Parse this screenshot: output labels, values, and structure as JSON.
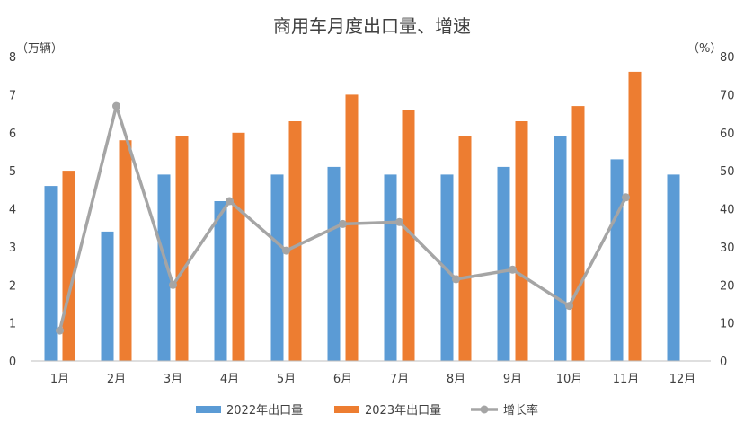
{
  "colors": {
    "series_2022": "#5B9BD5",
    "series_2023": "#ED7D31",
    "growth": "#A5A5A5",
    "axis": "#BFBFBF",
    "text": "#404040"
  },
  "chart_data": {
    "type": "bar",
    "title": "商用车月度出口量、增速",
    "y_left_unit": "（万辆）",
    "y_right_unit": "（%）",
    "categories": [
      "1月",
      "2月",
      "3月",
      "4月",
      "5月",
      "6月",
      "7月",
      "8月",
      "9月",
      "10月",
      "11月",
      "12月"
    ],
    "ylim_left": [
      0,
      8
    ],
    "ylim_right": [
      0,
      80
    ],
    "yticks_left": [
      "0",
      "1",
      "2",
      "3",
      "4",
      "5",
      "6",
      "7",
      "8"
    ],
    "yticks_right": [
      "0",
      "10",
      "20",
      "30",
      "40",
      "50",
      "60",
      "70",
      "80"
    ],
    "series": [
      {
        "name": "2022年出口量",
        "type": "bar",
        "axis": "left",
        "values": [
          4.6,
          3.4,
          4.9,
          4.2,
          4.9,
          5.1,
          4.9,
          4.9,
          5.1,
          5.9,
          5.3,
          4.9
        ]
      },
      {
        "name": "2023年出口量",
        "type": "bar",
        "axis": "left",
        "values": [
          5.0,
          5.8,
          5.9,
          6.0,
          6.3,
          7.0,
          6.6,
          5.9,
          6.3,
          6.7,
          7.6,
          null
        ]
      },
      {
        "name": "增长率",
        "type": "line",
        "axis": "right",
        "values": [
          8,
          67,
          20,
          42,
          29,
          36,
          36.5,
          21.5,
          24,
          14.5,
          43,
          null
        ]
      }
    ],
    "legend_position": "bottom",
    "grid": false
  }
}
